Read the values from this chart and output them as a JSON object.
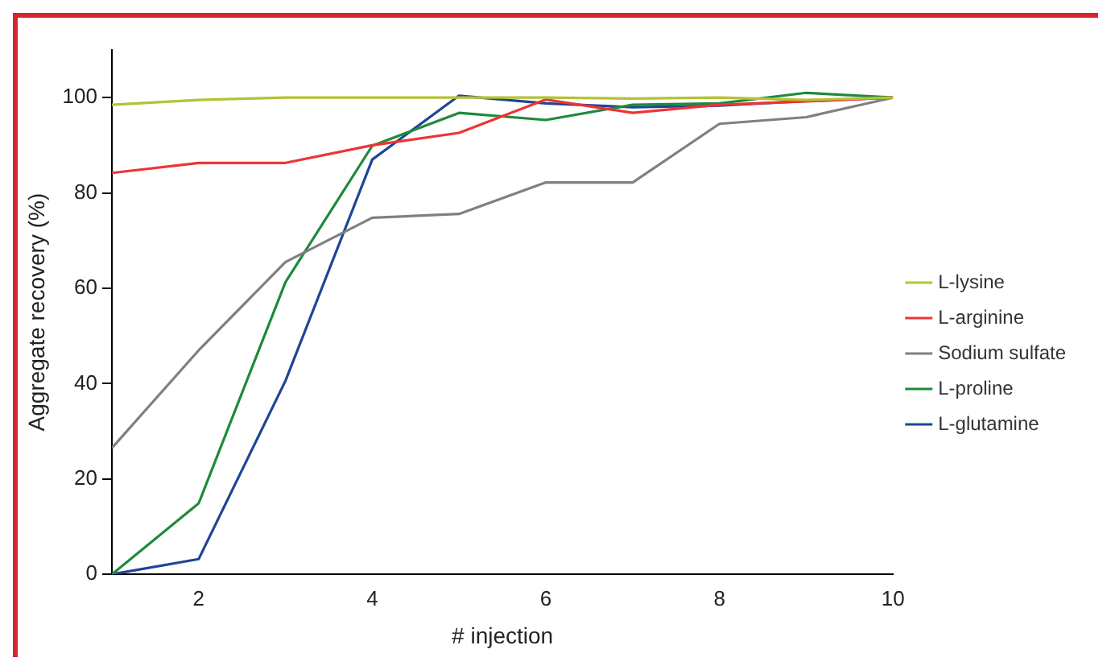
{
  "chart_data": {
    "type": "line",
    "xlabel": "# injection",
    "ylabel": "Aggregate recovery (%)",
    "x": [
      1,
      2,
      3,
      4,
      5,
      6,
      7,
      8,
      9,
      10
    ],
    "xlim": [
      1,
      10
    ],
    "xticks": [
      {
        "value": 1,
        "label": null
      },
      2,
      4,
      6,
      8,
      10
    ],
    "ylim": [
      0,
      110
    ],
    "yticks": [
      0,
      20,
      40,
      60,
      80,
      100
    ],
    "grid": false,
    "legend": "right",
    "marker": "none",
    "line_style": "solid",
    "series": [
      {
        "name": "L-lysine",
        "color": "#b5c235",
        "values": [
          98.5,
          99.5,
          100,
          100,
          100,
          100,
          99.8,
          100,
          99.5,
          100
        ]
      },
      {
        "name": "L-arginine",
        "color": "#ee3434",
        "values": [
          84.2,
          86.3,
          86.3,
          90,
          92.6,
          99.6,
          96.8,
          98.5,
          99.2,
          100
        ]
      },
      {
        "name": "Sodium sulfate",
        "color": "#808080",
        "values": [
          26.5,
          47,
          65.5,
          74.8,
          75.6,
          82.2,
          82.2,
          94.5,
          95.9,
          100
        ]
      },
      {
        "name": "L-proline",
        "color": "#1e8a3c",
        "values": [
          0,
          14.9,
          61.3,
          89.9,
          96.8,
          95.3,
          98.5,
          98.8,
          101,
          100
        ]
      },
      {
        "name": "L-glutamine",
        "color": "#1f4596",
        "values": [
          0,
          3.2,
          40.6,
          87,
          100.4,
          98.8,
          98,
          98.3,
          99.3,
          100
        ]
      }
    ]
  }
}
